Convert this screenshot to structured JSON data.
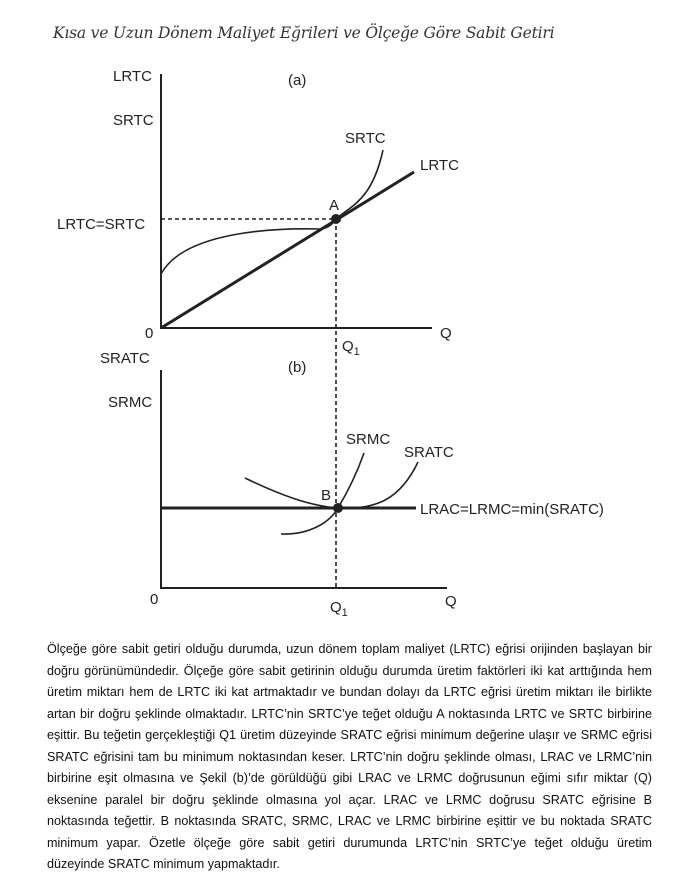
{
  "title": "Kısa ve Uzun Dönem Maliyet Eğrileri ve Ölçeğe Göre Sabit Getiri",
  "panel_a": {
    "label": "(a)",
    "y_axis_label_1": "LRTC",
    "y_axis_label_2": "SRTC",
    "y_tick": "LRTC=SRTC",
    "origin": "0",
    "x_axis_label": "Q",
    "x_tick": "Q",
    "x_tick_sub": "1",
    "curve_srtc": "SRTC",
    "curve_lrtc": "LRTC",
    "point": "A"
  },
  "panel_b": {
    "label": "(b)",
    "y_axis_label_1": "SRATC",
    "y_axis_label_2": "SRMC",
    "origin": "0",
    "x_axis_label": "Q",
    "x_tick": "Q",
    "x_tick_sub": "1",
    "curve_srmc": "SRMC",
    "curve_sratc": "SRATC",
    "line_label": "LRAC=LRMC=min(SRATC)",
    "point": "B"
  },
  "paragraph": "Ölçeğe göre sabit getiri olduğu durumda, uzun dönem toplam maliyet (LRTC) eğrisi orijinden başlayan bir doğru görünümündedir. Ölçeğe göre sabit getirinin olduğu durumda üretim faktörleri iki kat arttığında hem üretim miktarı hem de LRTC iki kat artmaktadır ve bundan dolayı da LRTC eğrisi üretim miktarı ile birlikte artan bir doğru şeklinde olmaktadır. LRTC’nin SRTC’ye teğet olduğu A noktasında LRTC ve SRTC birbirine eşittir. Bu teğetin gerçekleştiği Q1 üretim düzeyinde SRATC eğrisi minimum değerine ulaşır ve SRMC eğrisi SRATC eğrisini tam bu minimum noktasından keser. LRTC’nin doğru şeklinde olması, LRAC ve LRMC’nin birbirine eşit olmasına ve Şekil (b)’de görüldüğü gibi LRAC ve LRMC doğrusunun eğimi sıfır miktar (Q) eksenine paralel bir doğru şeklinde olmasına yol açar. LRAC ve LRMC doğrusu SRATC eğrisine B noktasında teğettir. B noktasında SRATC, SRMC, LRAC ve LRMC birbirine eşittir ve bu noktada SRATC minimum yapar. Özetle ölçeğe göre sabit getiri durumunda LRTC’nin SRTC’ye teğet olduğu üretim düzeyinde SRATC minimum yapmaktadır."
}
